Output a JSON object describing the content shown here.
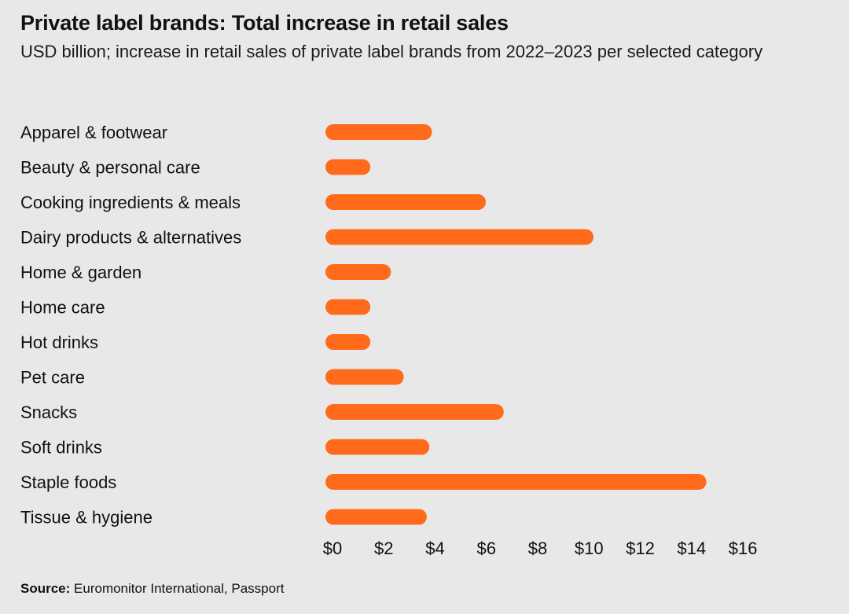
{
  "header": {
    "title": "Private label brands: Total increase in retail sales",
    "subtitle": "USD billion; increase in retail sales of private label brands from 2022–2023 per selected category"
  },
  "footer": {
    "source_label": "Source:",
    "source_text": "Euromonitor International, Passport"
  },
  "colors": {
    "bar": "#ff6b1a",
    "background": "#e8e8e8"
  },
  "chart_data": {
    "type": "bar",
    "orientation": "horizontal",
    "categories": [
      "Apparel & footwear",
      "Beauty & personal care",
      "Cooking ingredients & meals",
      "Dairy products & alternatives",
      "Home & garden",
      "Home care",
      "Hot drinks",
      "Pet care",
      "Snacks",
      "Soft drinks",
      "Staple foods",
      "Tissue & hygiene"
    ],
    "values": [
      3.6,
      1.2,
      5.7,
      9.9,
      2.0,
      1.2,
      1.2,
      2.5,
      6.4,
      3.5,
      14.3,
      3.4
    ],
    "x_ticks": [
      0,
      2,
      4,
      6,
      8,
      10,
      12,
      14,
      16
    ],
    "x_tick_labels": [
      "$0",
      "$2",
      "$4",
      "$6",
      "$8",
      "$10",
      "$12",
      "$14",
      "$16"
    ],
    "xlim": [
      0,
      16
    ],
    "grid": false,
    "legend": "none"
  }
}
